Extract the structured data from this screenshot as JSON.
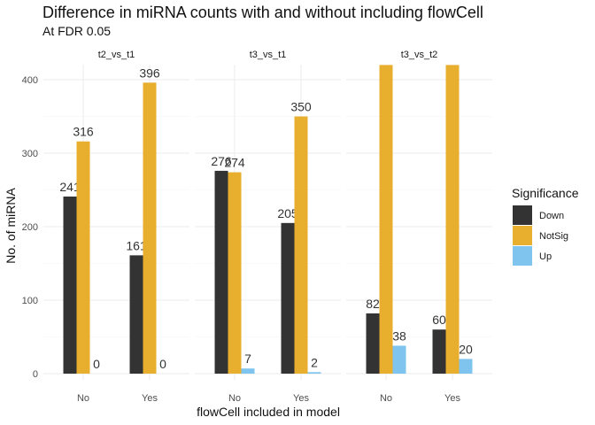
{
  "chart_data": {
    "type": "bar",
    "title": "Difference in miRNA counts with and without including flowCell",
    "subtitle": "At FDR 0.05",
    "xlabel": "flowCell included in model",
    "ylabel": "No. of miRNA",
    "ylim": [
      0,
      420
    ],
    "y_ticks": [
      0,
      100,
      200,
      300,
      400
    ],
    "categories": [
      "No",
      "Yes"
    ],
    "legend": {
      "title": "Significance",
      "position": "right",
      "entries": [
        {
          "name": "Down",
          "color": "#333333"
        },
        {
          "name": "NotSig",
          "color": "#E8AE2E"
        },
        {
          "name": "Up",
          "color": "#7EC4EE"
        }
      ]
    },
    "facets": [
      {
        "label": "t2_vs_t1",
        "series": [
          {
            "name": "Down",
            "values": [
              241,
              161
            ],
            "labels": [
              "241",
              "161"
            ]
          },
          {
            "name": "NotSig",
            "values": [
              316,
              396
            ],
            "labels": [
              "316",
              "396"
            ]
          },
          {
            "name": "Up",
            "values": [
              0,
              0
            ],
            "labels": [
              "0",
              "0"
            ]
          }
        ]
      },
      {
        "label": "t3_vs_t1",
        "series": [
          {
            "name": "Down",
            "values": [
              276,
              205
            ],
            "labels": [
              "276",
              "205"
            ]
          },
          {
            "name": "NotSig",
            "values": [
              274,
              350
            ],
            "labels": [
              "274",
              "350"
            ]
          },
          {
            "name": "Up",
            "values": [
              7,
              2
            ],
            "labels": [
              "7",
              "2"
            ]
          }
        ]
      },
      {
        "label": "t3_vs_t2",
        "series": [
          {
            "name": "Down",
            "values": [
              82,
              60
            ],
            "labels": [
              "82",
              "60"
            ]
          },
          {
            "name": "NotSig",
            "values": [
              470,
              470
            ],
            "labels": [
              "",
              ""
            ]
          },
          {
            "name": "Up",
            "values": [
              38,
              20
            ],
            "labels": [
              "38",
              "20"
            ]
          }
        ]
      }
    ],
    "grid": true
  }
}
